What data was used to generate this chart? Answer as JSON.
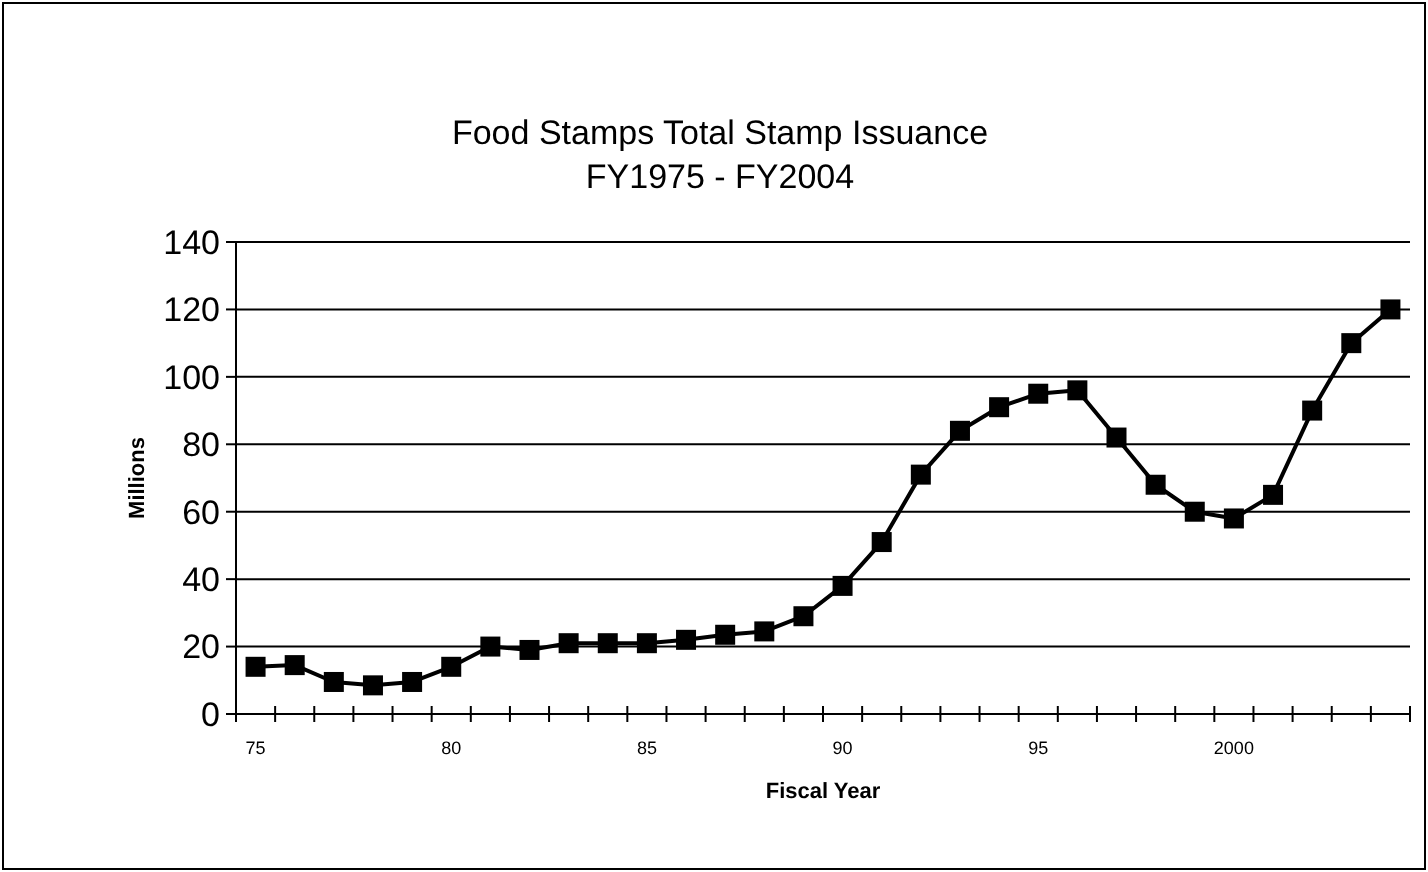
{
  "chart_data": {
    "type": "line",
    "title": "Food Stamps Total Stamp Issuance\nFY1975 - FY2004",
    "xlabel": "Fiscal Year",
    "ylabel": "Millions",
    "categories": [
      "75",
      null,
      null,
      null,
      null,
      "80",
      null,
      null,
      null,
      null,
      "85",
      null,
      null,
      null,
      null,
      "90",
      null,
      null,
      null,
      null,
      "95",
      null,
      null,
      null,
      null,
      "2000",
      null,
      null,
      null,
      null
    ],
    "series": [
      {
        "color": "#000000",
        "values": [
          14,
          14.5,
          9.5,
          8.5,
          9.5,
          14,
          20,
          19,
          21,
          21,
          21,
          22,
          23.5,
          24.5,
          29,
          38,
          51,
          71,
          84,
          91,
          95,
          96,
          82,
          68,
          60,
          58,
          65,
          90,
          110,
          120
        ]
      }
    ],
    "ylim": [
      0,
      140
    ],
    "yticks": [
      0,
      20,
      40,
      60,
      80,
      100,
      120,
      140
    ],
    "grid": "y",
    "marker": "square",
    "line_style": "solid"
  }
}
